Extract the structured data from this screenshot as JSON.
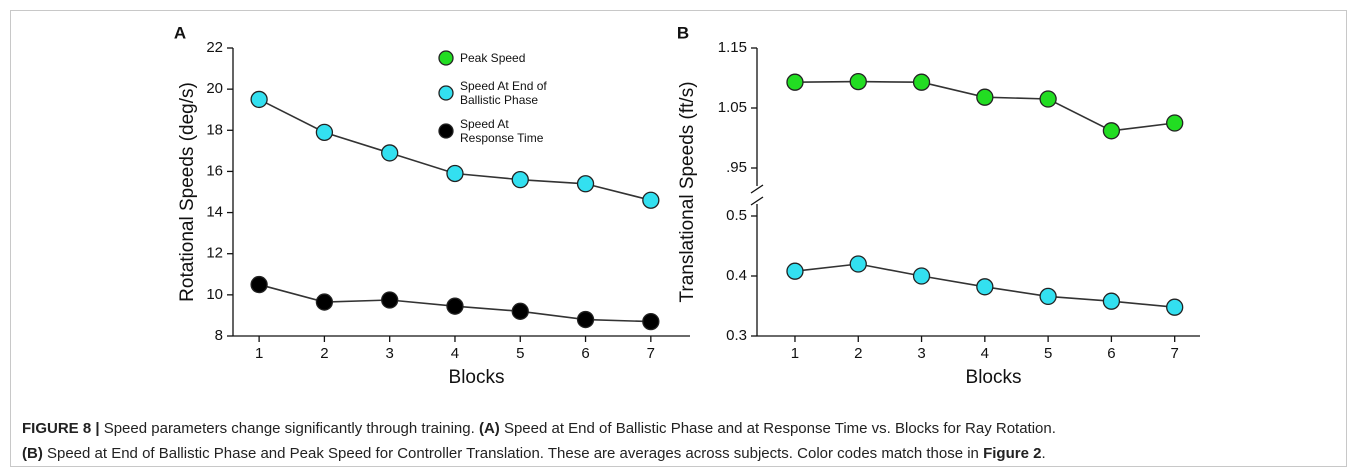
{
  "chart_data": [
    {
      "type": "line",
      "panel_label": "A",
      "y_label": "Rotational Speeds (deg/s)",
      "x_label": "Blocks",
      "x": [
        1,
        2,
        3,
        4,
        5,
        6,
        7
      ],
      "xlim": [
        0.6,
        7.6
      ],
      "xticks": [
        1,
        2,
        3,
        4,
        5,
        6,
        7
      ],
      "ylim": [
        8,
        22
      ],
      "yticks": [
        8,
        10,
        12,
        14,
        16,
        18,
        20,
        22
      ],
      "series": [
        {
          "name": "Speed At End of Ballistic Phase",
          "color": "#33e0f0",
          "values": [
            19.5,
            17.9,
            16.9,
            15.9,
            15.6,
            15.4,
            14.6
          ]
        },
        {
          "name": "Speed At Response Time",
          "color": "#000000",
          "values": [
            10.5,
            9.65,
            9.75,
            9.45,
            9.2,
            8.8,
            8.7
          ]
        }
      ]
    },
    {
      "type": "line",
      "panel_label": "B",
      "y_label": "Translational Speeds (ft/s)",
      "x_label": "Blocks",
      "x": [
        1,
        2,
        3,
        4,
        5,
        6,
        7
      ],
      "xlim": [
        0.4,
        7.4
      ],
      "xticks": [
        1,
        2,
        3,
        4,
        5,
        6,
        7
      ],
      "ylim": [
        0.3,
        1.15
      ],
      "axis_break": [
        0.52,
        0.92
      ],
      "yticks": [
        0.3,
        0.4,
        0.5,
        {
          "value": 0.95,
          "label": ".95"
        },
        1.05,
        1.15
      ],
      "series": [
        {
          "name": "Peak Speed",
          "color": "#22dd22",
          "values": [
            1.093,
            1.094,
            1.093,
            1.068,
            1.065,
            1.012,
            1.025
          ]
        },
        {
          "name": "Speed At End of Ballistic Phase",
          "color": "#33e0f0",
          "values": [
            0.408,
            0.42,
            0.4,
            0.382,
            0.366,
            0.358,
            0.348
          ]
        }
      ]
    }
  ],
  "caption": {
    "lines": [
      [
        {
          "text": "FIGURE 8 |",
          "bold": true
        },
        {
          "text": " Speed parameters change significantly through training. "
        },
        {
          "text": "(A)",
          "bold": true
        },
        {
          "text": " Speed at End of Ballistic Phase and at Response Time vs. Blocks for Ray Rotation."
        }
      ],
      [
        {
          "text": "(B)",
          "bold": true
        },
        {
          "text": " Speed at End of Ballistic Phase and Peak Speed for Controller Translation. These are averages across subjects. Color codes match those in "
        },
        {
          "text": "Figure 2",
          "bold": true
        },
        {
          "text": "."
        }
      ]
    ]
  }
}
